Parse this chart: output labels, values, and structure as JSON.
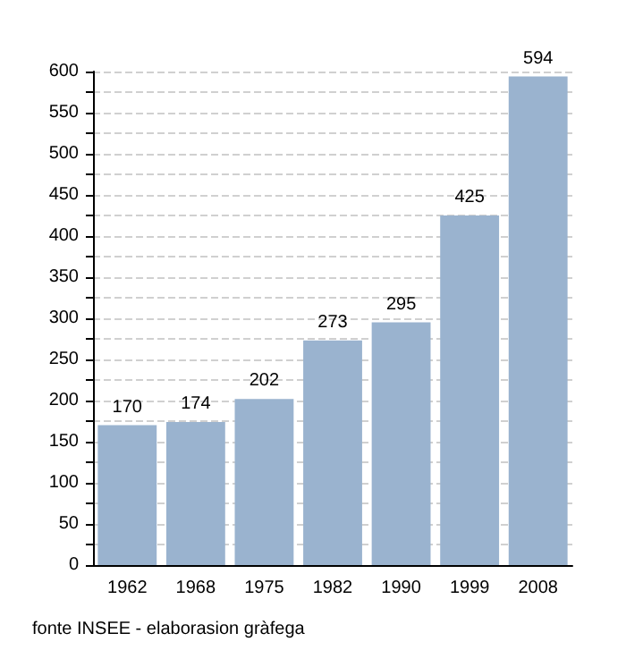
{
  "chart_data": {
    "type": "bar",
    "categories": [
      "1962",
      "1968",
      "1975",
      "1982",
      "1990",
      "1999",
      "2008"
    ],
    "values": [
      170,
      174,
      202,
      273,
      295,
      425,
      594
    ],
    "color": "#9ab3cf",
    "data_labels": true,
    "grid": "y",
    "ylim": [
      0,
      600
    ],
    "yticks": [
      0,
      {
        "value": 25,
        "label": null
      },
      50,
      {
        "value": 75,
        "label": null
      },
      100,
      {
        "value": 125,
        "label": null
      },
      150,
      {
        "value": 175,
        "label": null
      },
      200,
      {
        "value": 225,
        "label": null
      },
      250,
      {
        "value": 275,
        "label": null
      },
      300,
      {
        "value": 325,
        "label": null
      },
      350,
      {
        "value": 375,
        "label": null
      },
      400,
      {
        "value": 425,
        "label": null
      },
      450,
      {
        "value": 475,
        "label": null
      },
      500,
      {
        "value": 525,
        "label": null
      },
      550,
      {
        "value": 575,
        "label": null
      },
      600
    ],
    "annotations": [
      "fonte INSEE - elaborasion gràfega"
    ]
  }
}
